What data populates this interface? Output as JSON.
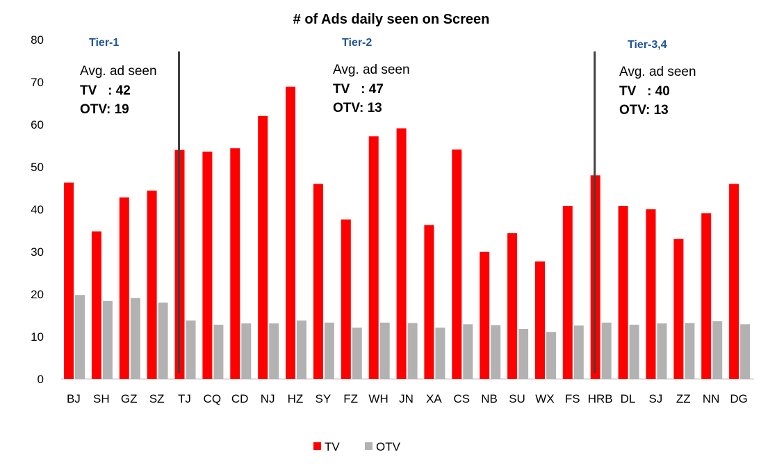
{
  "chart_data": {
    "type": "bar",
    "title": "# of Ads daily seen on Screen",
    "ylim": [
      0,
      80
    ],
    "yticks": [
      "0",
      "10",
      "20",
      "30",
      "40",
      "50",
      "60",
      "70",
      "80"
    ],
    "categories": [
      "BJ",
      "SH",
      "GZ",
      "SZ",
      "TJ",
      "CQ",
      "CD",
      "NJ",
      "HZ",
      "SY",
      "FZ",
      "WH",
      "JN",
      "XA",
      "CS",
      "NB",
      "SU",
      "WX",
      "FS",
      "HRB",
      "DL",
      "SJ",
      "ZZ",
      "NN",
      "DG"
    ],
    "series": [
      {
        "name": "TV",
        "color": "#ff0000",
        "values": [
          46.3,
          34.8,
          42.8,
          44.4,
          54.0,
          53.6,
          54.4,
          62.0,
          68.9,
          46.0,
          37.6,
          57.2,
          59.1,
          36.3,
          54.1,
          30.0,
          34.4,
          27.7,
          40.8,
          48.0,
          40.8,
          40.0,
          33.0,
          39.1,
          46.0
        ]
      },
      {
        "name": "OTV",
        "color": "#b2b2b2",
        "values": [
          19.8,
          18.4,
          19.1,
          18.0,
          13.8,
          12.8,
          13.1,
          13.1,
          13.8,
          13.3,
          12.1,
          13.3,
          13.2,
          12.1,
          12.9,
          12.7,
          11.8,
          11.1,
          12.6,
          13.3,
          12.8,
          13.1,
          13.2,
          13.6,
          12.9
        ]
      }
    ],
    "dividers_after": [
      "TJ",
      "HRB"
    ],
    "tiers": [
      {
        "label": "Tier-1",
        "avg_label": "Avg. ad seen",
        "tv_label": "TV   : 42",
        "otv_label": "OTV: 19"
      },
      {
        "label": "Tier-2",
        "avg_label": "Avg. ad seen",
        "tv_label": "TV   : 47",
        "otv_label": "OTV: 13"
      },
      {
        "label": "Tier-3,4",
        "avg_label": "Avg. ad seen",
        "tv_label": "TV   : 40",
        "otv_label": "OTV: 13"
      }
    ],
    "legend": [
      "TV",
      "OTV"
    ],
    "legend_position": "bottom-center",
    "grid": false
  }
}
